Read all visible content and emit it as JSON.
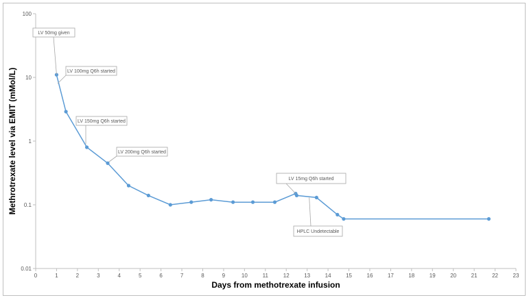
{
  "chart_data": {
    "type": "line",
    "title": "",
    "xlabel": "Days from methotrexate infusion",
    "ylabel": "Methrotrexate level via EMIT (mMol/L)",
    "xlim": [
      0,
      23
    ],
    "ylim": [
      0.01,
      100
    ],
    "yscale": "log",
    "grid": false,
    "legend": "none",
    "x_ticks": [
      "0",
      "1",
      "2",
      "3",
      "4",
      "5",
      "6",
      "7",
      "8",
      "9",
      "10",
      "11",
      "12",
      "13",
      "14",
      "15",
      "16",
      "17",
      "18",
      "19",
      "20",
      "21",
      "22",
      "23"
    ],
    "y_ticks": [
      "0.01",
      "0.1",
      "1",
      "10",
      "100"
    ],
    "series": [
      {
        "color": "#5b9bd5",
        "points": [
          {
            "x": 1.0,
            "y": 11
          },
          {
            "x": 1.45,
            "y": 2.9
          },
          {
            "x": 2.45,
            "y": 0.8
          },
          {
            "x": 3.45,
            "y": 0.45
          },
          {
            "x": 4.45,
            "y": 0.2
          },
          {
            "x": 5.4,
            "y": 0.14
          },
          {
            "x": 6.45,
            "y": 0.1
          },
          {
            "x": 7.45,
            "y": 0.11
          },
          {
            "x": 8.4,
            "y": 0.12
          },
          {
            "x": 9.45,
            "y": 0.11
          },
          {
            "x": 10.4,
            "y": 0.11
          },
          {
            "x": 11.45,
            "y": 0.11
          },
          {
            "x": 12.45,
            "y": 0.15
          },
          {
            "x": 12.5,
            "y": 0.14
          },
          {
            "x": 13.45,
            "y": 0.13
          },
          {
            "x": 14.45,
            "y": 0.07
          },
          {
            "x": 14.75,
            "y": 0.06
          },
          {
            "x": 21.7,
            "y": 0.06
          }
        ]
      }
    ],
    "annotations": [
      {
        "text": "LV 50mg given",
        "x": 1.0,
        "y": 11
      },
      {
        "text": "LV 100mg Q6h started",
        "x": 1.05,
        "y": 8
      },
      {
        "text": "LV 150mg Q6h started",
        "x": 2.4,
        "y": 0.9
      },
      {
        "text": "LV 200mg Q6h started",
        "x": 3.5,
        "y": 0.47
      },
      {
        "text": "LV 15mg Q6h started",
        "x": 12.45,
        "y": 0.15
      },
      {
        "text": "HPLC Undetectable",
        "x": 13.1,
        "y": 0.13
      }
    ]
  }
}
